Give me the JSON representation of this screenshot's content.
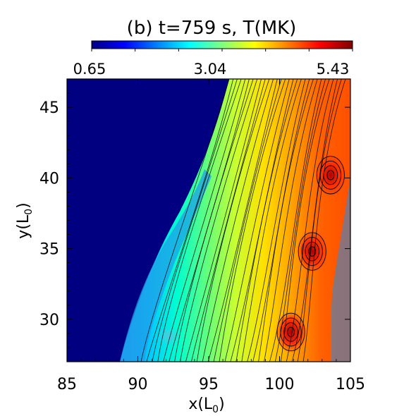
{
  "chart_data": {
    "type": "heatmap",
    "title": "(b) t=759 s, T(MK)",
    "xlabel": "x(L",
    "xlabel_sub": "0",
    "xlabel_close": ")",
    "ylabel": "y(L",
    "ylabel_sub": "0",
    "ylabel_close": ")",
    "xlim": [
      85,
      105
    ],
    "ylim": [
      27,
      47
    ],
    "x_ticks": [
      85,
      90,
      95,
      100,
      105
    ],
    "y_ticks": [
      30,
      35,
      40,
      45
    ],
    "colorbar": {
      "min": 0.65,
      "max": 5.43,
      "tick_labels": [
        "0.65",
        "3.04",
        "5.43"
      ],
      "colormap": [
        "#000080",
        "#0000ff",
        "#0080ff",
        "#00ffff",
        "#80ff80",
        "#ffff00",
        "#ff8000",
        "#ff0000",
        "#800000"
      ]
    },
    "background_value": 0.65,
    "hot_spots": [
      {
        "x": 103.6,
        "y": 40.2,
        "value": 5.43
      },
      {
        "x": 102.3,
        "y": 34.8,
        "value": 5.2
      },
      {
        "x": 100.8,
        "y": 29.1,
        "value": 5.3
      },
      {
        "x": 92.2,
        "y": 28.8,
        "value": 2.2
      }
    ],
    "contour_lines": true,
    "grid": false
  }
}
